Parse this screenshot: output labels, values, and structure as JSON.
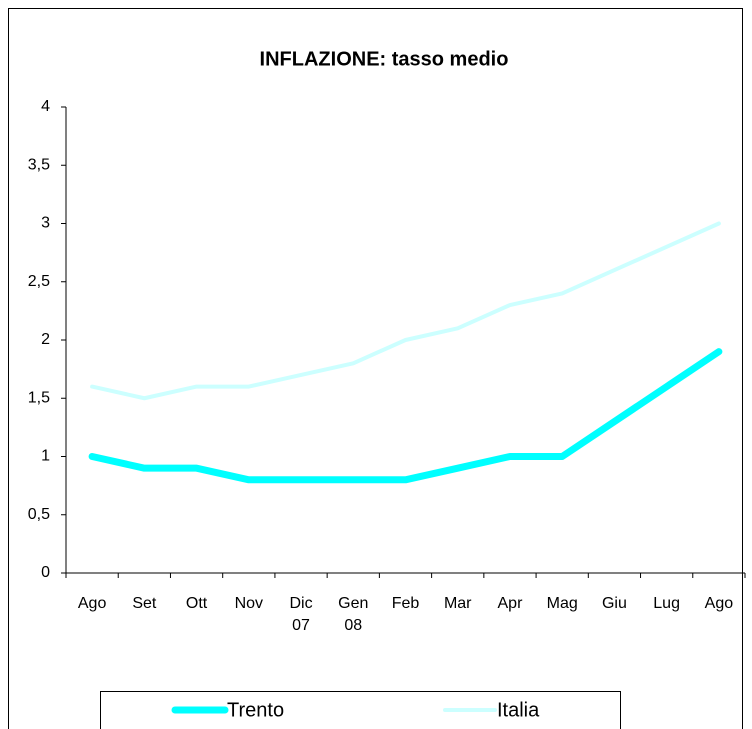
{
  "chart_data": {
    "type": "line",
    "title": "INFLAZIONE: tasso medio",
    "categories": [
      "Ago",
      "Set",
      "Ott",
      "Nov",
      "Dic\n07",
      "Gen\n08",
      "Feb",
      "Mar",
      "Apr",
      "Mag",
      "Giu",
      "Lug",
      "Ago"
    ],
    "series": [
      {
        "name": "Trento",
        "color": "#00ffff",
        "values": [
          1,
          0.9,
          0.9,
          0.8,
          0.8,
          0.8,
          0.8,
          0.9,
          1,
          1,
          1.3,
          1.6,
          1.9
        ]
      },
      {
        "name": "Italia",
        "color": "#ccffff",
        "values": [
          1.6,
          1.5,
          1.6,
          1.6,
          1.7,
          1.8,
          2,
          2.1,
          2.3,
          2.4,
          2.6,
          2.8,
          3
        ]
      }
    ],
    "ylim": [
      0,
      4
    ],
    "yticks": [
      0,
      {
        "value": 0.5,
        "label": "0,5"
      },
      1,
      {
        "value": 1.5,
        "label": "1,5"
      },
      2,
      {
        "value": 2.5,
        "label": "2,5"
      },
      3,
      {
        "value": 3.5,
        "label": "3,5"
      },
      4
    ],
    "legend": "bottom"
  }
}
